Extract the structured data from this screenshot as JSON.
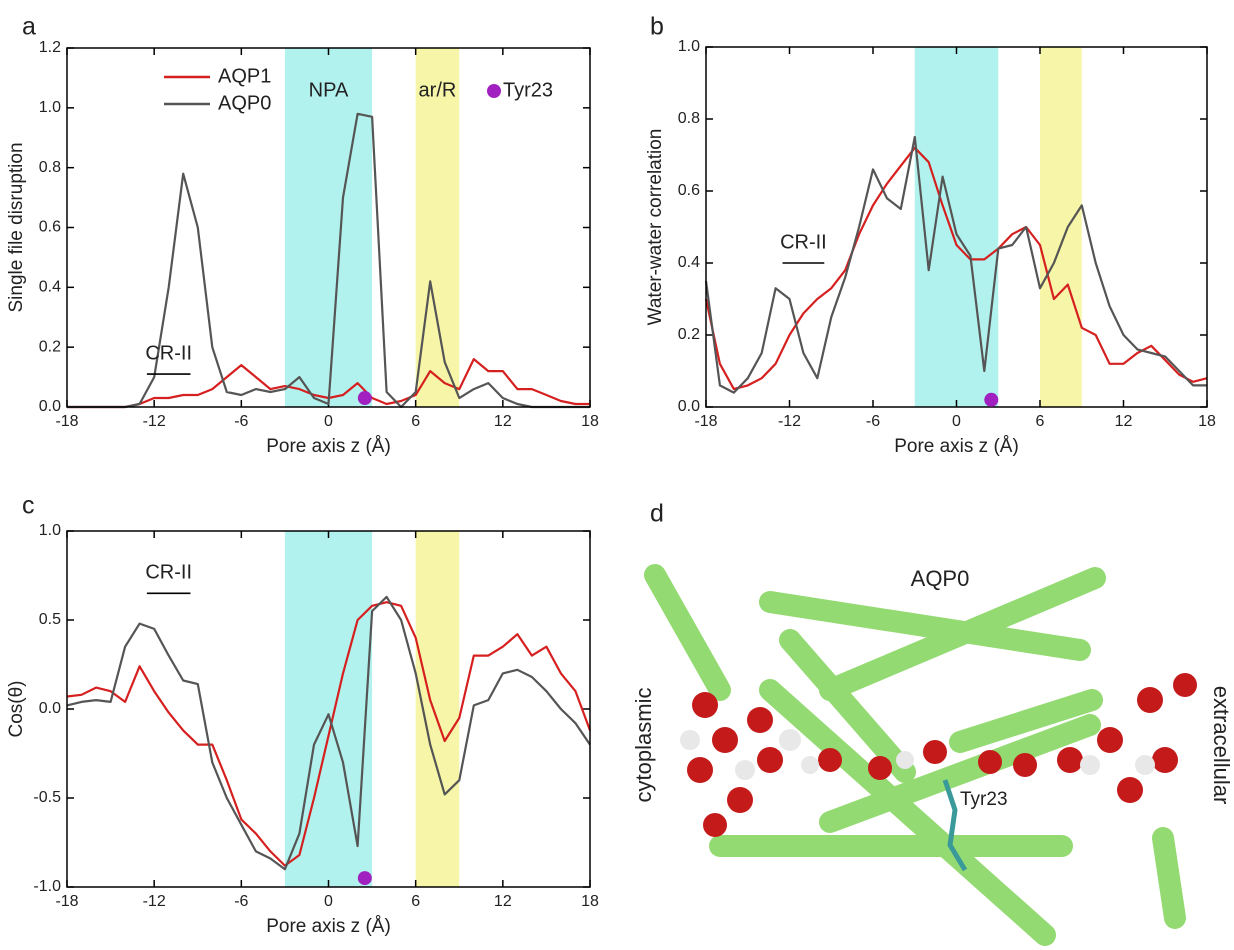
{
  "chart_data": [
    {
      "type": "line",
      "panel_label": "a",
      "xlabel": "Pore axis z (Å)",
      "ylabel": "Single file disruption",
      "xlim": [
        -18,
        18
      ],
      "xticks": [
        -18,
        -12,
        -6,
        0,
        6,
        12,
        18
      ],
      "ylim": [
        0,
        1.2
      ],
      "yticks": [
        {
          "value": 0,
          "label": "0.0"
        },
        0.2,
        0.4,
        0.6,
        0.8,
        {
          "value": 1,
          "label": "1.0"
        },
        1.2
      ],
      "legend": "upper left",
      "x": [
        -18,
        -17,
        -16,
        -15,
        -14,
        -13,
        -12,
        -11,
        -10,
        -9,
        -8,
        -7,
        -6,
        -5,
        -4,
        -3,
        -2,
        -1,
        0,
        1,
        2,
        3,
        4,
        5,
        6,
        7,
        8,
        9,
        10,
        11,
        12,
        13,
        14,
        15,
        16,
        17,
        18
      ],
      "series": [
        {
          "name": "AQP1",
          "color": "#d62020",
          "values": [
            0,
            0,
            0,
            0,
            0,
            0.01,
            0.03,
            0.03,
            0.04,
            0.04,
            0.06,
            0.1,
            0.14,
            0.1,
            0.06,
            0.07,
            0.06,
            0.04,
            0.03,
            0.04,
            0.08,
            0.03,
            0.01,
            0.02,
            0.04,
            0.12,
            0.08,
            0.06,
            0.16,
            0.12,
            0.12,
            0.06,
            0.06,
            0.04,
            0.02,
            0.01,
            0.01
          ]
        },
        {
          "name": "AQP0",
          "color": "#555555",
          "values": [
            0,
            0,
            0,
            0,
            0,
            0.01,
            0.1,
            0.4,
            0.78,
            0.6,
            0.2,
            0.05,
            0.04,
            0.06,
            0.05,
            0.06,
            0.1,
            0.03,
            0.01,
            0.7,
            0.98,
            0.97,
            0.05,
            0,
            0.05,
            0.42,
            0.15,
            0.03,
            0.06,
            0.08,
            0.03,
            0.01,
            0,
            0,
            0,
            0,
            0
          ]
        }
      ],
      "bands": [
        {
          "range": [
            -3,
            3
          ],
          "color": "#b2f2ee",
          "label": "NPA"
        },
        {
          "range": [
            6,
            9
          ],
          "color": "#f6f5a8",
          "label": "ar/R"
        }
      ],
      "annotation": {
        "text": "CR-II",
        "x": [
          -12.5,
          -9.5
        ],
        "y": 0.11
      },
      "marker": {
        "label": "Tyr23",
        "x": 2.5,
        "y": 0.03,
        "color": "#a020c0"
      }
    },
    {
      "type": "line",
      "panel_label": "b",
      "xlabel": "Pore axis z (Å)",
      "ylabel": "Water-water correlation",
      "xlim": [
        -18,
        18
      ],
      "xticks": [
        -18,
        -12,
        -6,
        0,
        6,
        12,
        18
      ],
      "ylim": [
        0,
        1
      ],
      "yticks": [
        {
          "value": 0,
          "label": "0.0"
        },
        0.2,
        0.4,
        0.6,
        0.8,
        {
          "value": 1,
          "label": "1.0"
        }
      ],
      "x": [
        -18,
        -17,
        -16,
        -15,
        -14,
        -13,
        -12,
        -11,
        -10,
        -9,
        -8,
        -7,
        -6,
        -5,
        -4,
        -3,
        -2,
        -1,
        0,
        1,
        2,
        3,
        4,
        5,
        6,
        7,
        8,
        9,
        10,
        11,
        12,
        13,
        14,
        15,
        16,
        17,
        18
      ],
      "series": [
        {
          "color": "#d62020",
          "values": [
            0.3,
            0.12,
            0.05,
            0.06,
            0.08,
            0.12,
            0.2,
            0.26,
            0.3,
            0.33,
            0.38,
            0.48,
            0.56,
            0.62,
            0.67,
            0.72,
            0.68,
            0.56,
            0.45,
            0.41,
            0.41,
            0.44,
            0.48,
            0.5,
            0.45,
            0.3,
            0.34,
            0.22,
            0.2,
            0.12,
            0.12,
            0.15,
            0.17,
            0.13,
            0.09,
            0.07,
            0.08
          ]
        },
        {
          "color": "#555555",
          "values": [
            0.35,
            0.06,
            0.04,
            0.08,
            0.15,
            0.33,
            0.3,
            0.15,
            0.08,
            0.25,
            0.36,
            0.5,
            0.66,
            0.58,
            0.55,
            0.75,
            0.38,
            0.64,
            0.48,
            0.42,
            0.1,
            0.44,
            0.45,
            0.5,
            0.33,
            0.4,
            0.5,
            0.56,
            0.4,
            0.28,
            0.2,
            0.16,
            0.15,
            0.14,
            0.1,
            0.06,
            0.06
          ]
        }
      ],
      "bands": [
        {
          "range": [
            -3,
            3
          ],
          "color": "#b2f2ee"
        },
        {
          "range": [
            6,
            9
          ],
          "color": "#f6f5a8"
        }
      ],
      "annotation": {
        "text": "CR-II",
        "x": [
          -12.5,
          -9.5
        ],
        "y": 0.4
      },
      "marker": {
        "x": 2.5,
        "y": 0.02,
        "color": "#a020c0"
      }
    },
    {
      "type": "line",
      "panel_label": "c",
      "xlabel": "Pore axis z (Å)",
      "ylabel": "Cos(θ)",
      "xlim": [
        -18,
        18
      ],
      "xticks": [
        -18,
        -12,
        -6,
        0,
        6,
        12,
        18
      ],
      "ylim": [
        -1,
        1
      ],
      "yticks": [
        {
          "value": -1,
          "label": "-1.0"
        },
        -0.5,
        {
          "value": 0,
          "label": "0.0"
        },
        0.5,
        {
          "value": 1,
          "label": "1.0"
        }
      ],
      "x": [
        -18,
        -17,
        -16,
        -15,
        -14,
        -13,
        -12,
        -11,
        -10,
        -9,
        -8,
        -7,
        -6,
        -5,
        -4,
        -3,
        -2,
        -1,
        0,
        1,
        2,
        3,
        4,
        5,
        6,
        7,
        8,
        9,
        10,
        11,
        12,
        13,
        14,
        15,
        16,
        17,
        18
      ],
      "series": [
        {
          "color": "#d62020",
          "values": [
            0.07,
            0.08,
            0.12,
            0.1,
            0.04,
            0.24,
            0.1,
            -0.02,
            -0.12,
            -0.2,
            -0.2,
            -0.4,
            -0.62,
            -0.7,
            -0.8,
            -0.88,
            -0.82,
            -0.5,
            -0.15,
            0.2,
            0.5,
            0.58,
            0.6,
            0.58,
            0.4,
            0.05,
            -0.18,
            -0.05,
            0.3,
            0.3,
            0.35,
            0.42,
            0.3,
            0.35,
            0.2,
            0.1,
            -0.12
          ]
        },
        {
          "color": "#555555",
          "values": [
            0.02,
            0.04,
            0.05,
            0.04,
            0.35,
            0.48,
            0.45,
            0.3,
            0.16,
            0.14,
            -0.3,
            -0.5,
            -0.65,
            -0.8,
            -0.84,
            -0.9,
            -0.7,
            -0.2,
            -0.03,
            -0.3,
            -0.77,
            0.55,
            0.63,
            0.5,
            0.2,
            -0.2,
            -0.48,
            -0.4,
            0.02,
            0.05,
            0.2,
            0.22,
            0.18,
            0.1,
            0,
            -0.08,
            -0.2
          ]
        }
      ],
      "bands": [
        {
          "range": [
            -3,
            3
          ],
          "color": "#b2f2ee"
        },
        {
          "range": [
            6,
            9
          ],
          "color": "#f6f5a8"
        }
      ],
      "annotation": {
        "text": "CR-II",
        "x": [
          -12.5,
          -9.5
        ],
        "y": 0.65
      },
      "marker": {
        "x": 2.5,
        "y": -0.95,
        "color": "#a020c0"
      }
    }
  ],
  "image_panel": {
    "panel_label": "d",
    "title": "AQP0",
    "left_label": "cytoplasmic",
    "right_label": "extracellular",
    "residue_label": "Tyr23"
  }
}
